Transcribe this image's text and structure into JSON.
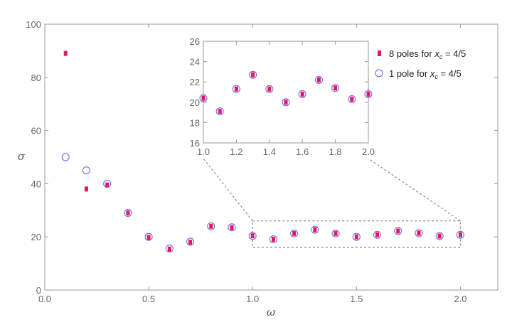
{
  "chart_data": {
    "type": "scatter",
    "xlabel": "ω",
    "ylabel": "σ",
    "xlim": [
      0,
      2.18
    ],
    "ylim": [
      0,
      100
    ],
    "xticks": [
      "0.0",
      "0.5",
      "1.0",
      "1.5",
      "2.0"
    ],
    "yticks": [
      "0",
      "20",
      "40",
      "60",
      "80",
      "100"
    ],
    "legend_position": "top-right",
    "series": [
      {
        "name": "8 poles for x_c = 4/5",
        "label_pre": "8 poles for ",
        "label_var": "x",
        "label_sub": "c",
        "label_post": " = 4/5",
        "marker": "square",
        "color": "#e8175d",
        "x": [
          0.1,
          0.2,
          0.3,
          0.4,
          0.5,
          0.6,
          0.7,
          0.8,
          0.9,
          1.0,
          1.1,
          1.2,
          1.3,
          1.4,
          1.5,
          1.6,
          1.7,
          1.8,
          1.9,
          2.0
        ],
        "y": [
          89,
          38,
          39.5,
          29,
          19.8,
          15.4,
          18,
          24,
          23.5,
          20.4,
          19.1,
          21.3,
          22.7,
          21.3,
          20.0,
          20.8,
          22.2,
          21.4,
          20.3,
          20.8
        ]
      },
      {
        "name": "1 pole for x_c = 4/5",
        "label_pre": "1 pole for ",
        "label_var": "x",
        "label_sub": "c",
        "label_post": " = 4/5",
        "marker": "open-circle",
        "color": "#6a5cf0",
        "x": [
          0.1,
          0.2,
          0.3,
          0.4,
          0.5,
          0.6,
          0.7,
          0.8,
          0.9,
          1.0,
          1.1,
          1.2,
          1.3,
          1.4,
          1.5,
          1.6,
          1.7,
          1.8,
          1.9,
          2.0
        ],
        "y": [
          50,
          45,
          40,
          29,
          20,
          15.6,
          18.2,
          24,
          23.6,
          20.4,
          19.1,
          21.3,
          22.7,
          21.3,
          20.0,
          20.8,
          22.2,
          21.4,
          20.3,
          20.8
        ]
      }
    ],
    "inset": {
      "xlim": [
        1.0,
        2.0
      ],
      "ylim": [
        16,
        26
      ],
      "xticks": [
        "1.0",
        "1.2",
        "1.4",
        "1.6",
        "1.8",
        "2.0"
      ],
      "yticks": [
        "16",
        "18",
        "20",
        "22",
        "24",
        "26"
      ]
    }
  }
}
